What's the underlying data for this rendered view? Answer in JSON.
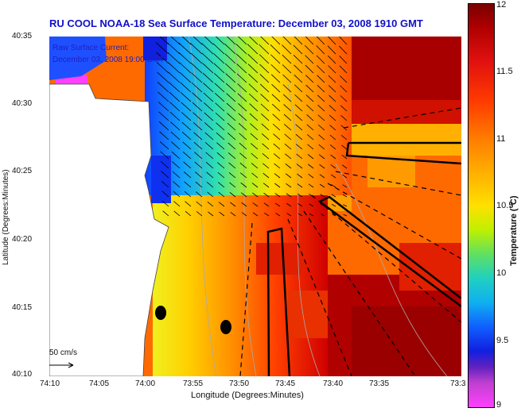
{
  "title": "RU COOL  NOAA-18  Sea Surface Temperature:  December 03, 2008 1910 GMT",
  "overlay": {
    "line1": "Raw Surface Current:",
    "line2": "December 03, 2008 19:00 GMT",
    "scale": "50 cm/s"
  },
  "axes": {
    "xlabel": "Longitude (Degrees:Minutes)",
    "ylabel": "Latitude (Degrees:Minutes)",
    "xticks": [
      "74:10",
      "74:05",
      "74:00",
      "73:55",
      "73:50",
      "73:45",
      "73:40",
      "73:35",
      "73:3"
    ],
    "yticks": [
      "40:35",
      "40:30",
      "40:25",
      "40:20",
      "40:15",
      "40:10"
    ]
  },
  "colorbar": {
    "label": "Temperature (°C)",
    "ticks": [
      "12",
      "11.5",
      "11",
      "10.5",
      "10",
      "9.5",
      "9"
    ]
  },
  "colors": {
    "title": "#1010c8",
    "land": "#ffffff",
    "warm": "#c80000",
    "cool": "#1040ff"
  }
}
